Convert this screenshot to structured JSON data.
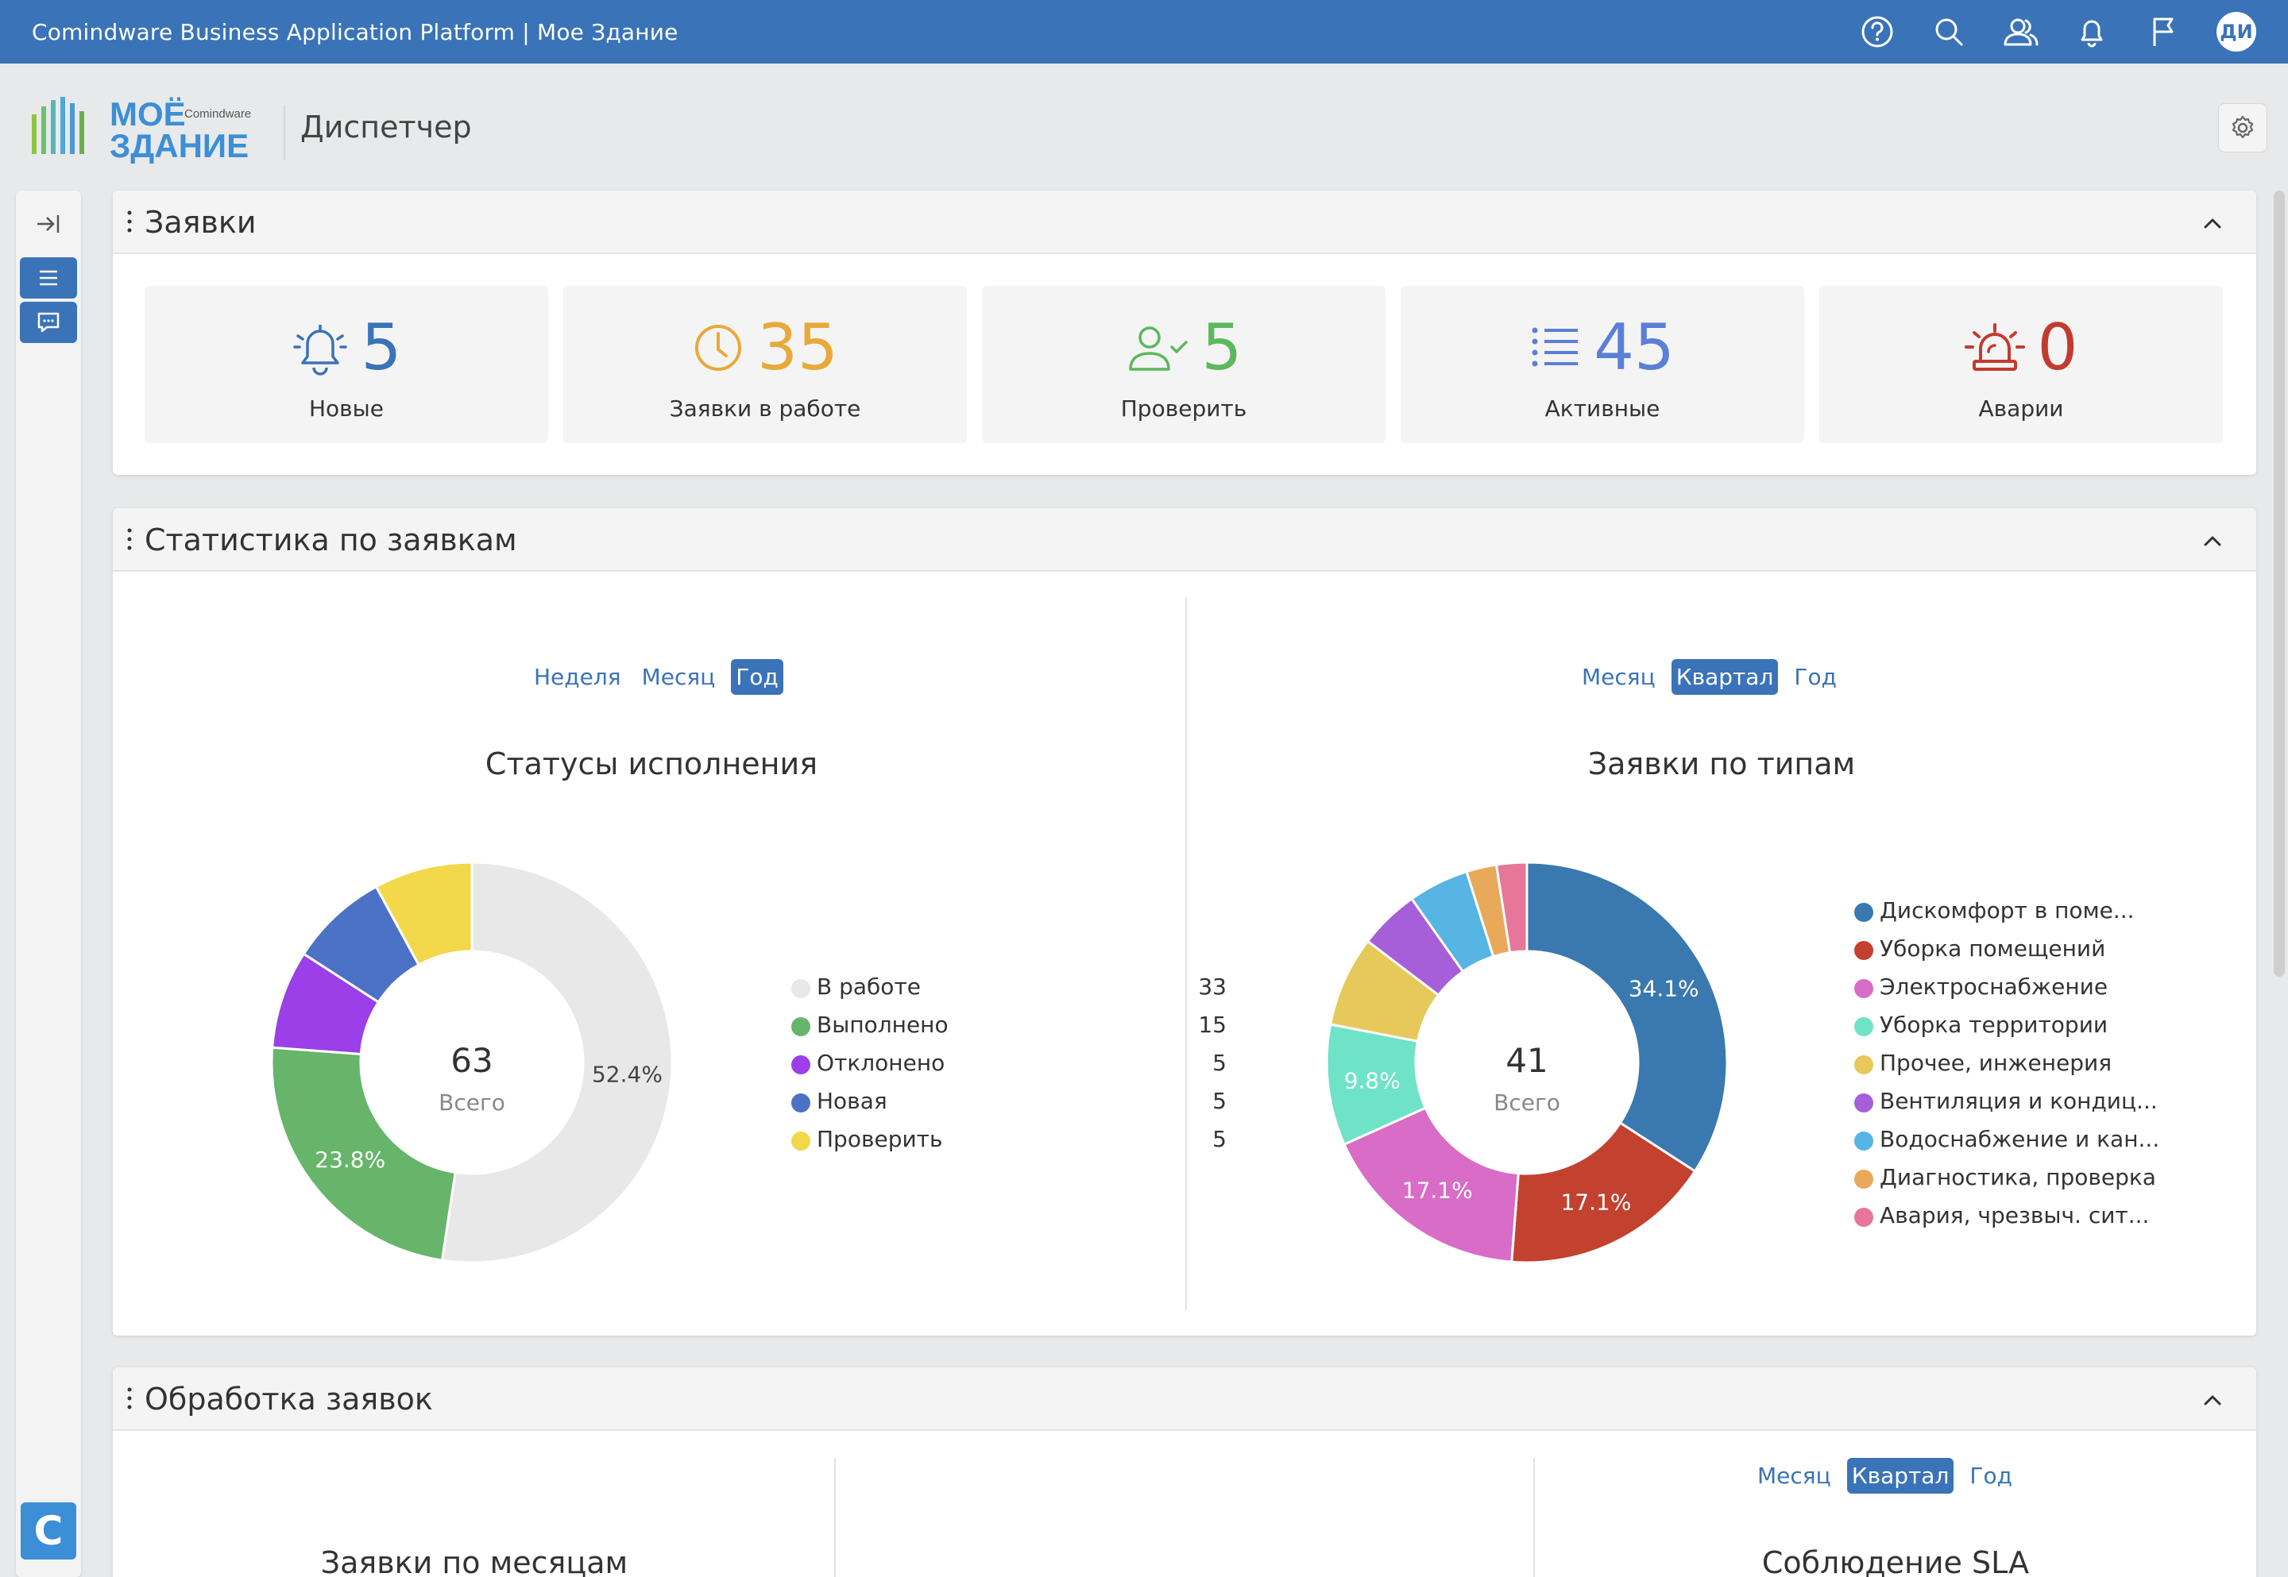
{
  "topbar": {
    "title": "Comindware Business Application Platform  |  Мое Здание",
    "avatar": "ДИ",
    "icons": [
      "help-icon",
      "search-icon",
      "users-icon",
      "bell-icon",
      "flag-icon"
    ]
  },
  "header": {
    "logo_top": "МОЁ",
    "logo_brand": "Comindware",
    "logo_bottom": "ЗДАНИЕ",
    "page_title": "Диспетчер"
  },
  "requests_panel": {
    "title": "Заявки",
    "kpis": [
      {
        "value": "5",
        "label": "Новые",
        "color": "#3a73b8",
        "icon": "bell-icon"
      },
      {
        "value": "35",
        "label": "Заявки в работе",
        "color": "#e8a93a",
        "icon": "clock-icon"
      },
      {
        "value": "5",
        "label": "Проверить",
        "color": "#5cb85c",
        "icon": "user-check-icon"
      },
      {
        "value": "45",
        "label": "Активные",
        "color": "#5a7fd6",
        "icon": "list-icon"
      },
      {
        "value": "0",
        "label": "Аварии",
        "color": "#c23b2e",
        "icon": "alarm-icon"
      }
    ]
  },
  "stats_panel": {
    "title": "Статистика по заявкам",
    "left": {
      "periods": [
        "Неделя",
        "Месяц",
        "Год"
      ],
      "active_period": "Год",
      "title": "Статусы исполнения",
      "center_value": "63",
      "center_label": "Всего"
    },
    "right": {
      "periods": [
        "Месяц",
        "Квартал",
        "Год"
      ],
      "active_period": "Квартал",
      "title": "Заявки по типам",
      "center_value": "41",
      "center_label": "Всего"
    }
  },
  "processing_panel": {
    "title": "Обработка заявок",
    "left_title": "Заявки по месяцам",
    "right_periods": [
      "Месяц",
      "Квартал",
      "Год"
    ],
    "right_active_period": "Квартал",
    "right_title": "Соблюдение SLA"
  },
  "chart_data": [
    {
      "type": "pie",
      "title": "Статусы исполнения",
      "categories": [
        "В работе",
        "Выполнено",
        "Отклонено",
        "Новая",
        "Проверить"
      ],
      "values": [
        33,
        15,
        5,
        5,
        5
      ],
      "colors": [
        "#e8e8e8",
        "#66b56b",
        "#9b3fe8",
        "#4b72c4",
        "#f2d84a"
      ],
      "data_labels": [
        "52.4%",
        "23.8%",
        "",
        "",
        ""
      ],
      "legend": "right"
    },
    {
      "type": "pie",
      "title": "Заявки по типам",
      "categories": [
        "Дискомфорт в поме...",
        "Уборка помещений",
        "Электроснабжение",
        "Уборка территории",
        "Прочее, инженерия",
        "Вентиляция и кондиц...",
        "Водоснабжение и кан...",
        "Диагностика, проверка",
        "Авария, чрезвыч. сит..."
      ],
      "values": [
        14,
        7,
        7,
        4,
        3,
        2,
        2,
        1,
        1
      ],
      "colors": [
        "#3a78b0",
        "#c2412f",
        "#d86cc7",
        "#6fe3c8",
        "#e6c95a",
        "#a65fd8",
        "#56b5e3",
        "#e8a95a",
        "#e6769a"
      ],
      "data_labels": [
        "34.1%",
        "17.1%",
        "17.1%",
        "9.8%",
        "",
        "",
        "",
        "",
        ""
      ],
      "legend": "right"
    }
  ]
}
